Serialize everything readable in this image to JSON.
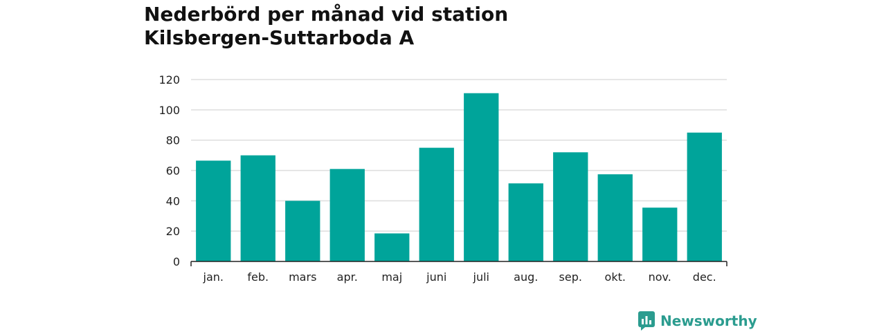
{
  "chart_data": {
    "type": "bar",
    "title": "Nederbörd per månad vid station",
    "subtitle": "Kilsbergen-Suttarboda A",
    "categories": [
      "jan.",
      "feb.",
      "mars",
      "apr.",
      "maj",
      "juni",
      "juli",
      "aug.",
      "sep.",
      "okt.",
      "nov.",
      "dec."
    ],
    "values": [
      66.5,
      70,
      40,
      61,
      18.5,
      75,
      111,
      51.5,
      72,
      57.5,
      35.5,
      85
    ],
    "ylim": [
      0,
      120
    ],
    "yticks": [
      0,
      20,
      40,
      60,
      80,
      100,
      120
    ],
    "grid": true,
    "bar_color": "#00a49a",
    "grid_color": "#dddddd",
    "xlabel": "",
    "ylabel": ""
  },
  "branding": {
    "label": "Newsworthy",
    "icon": "newsworthy-logo-icon",
    "color": "#2b9c8f"
  }
}
